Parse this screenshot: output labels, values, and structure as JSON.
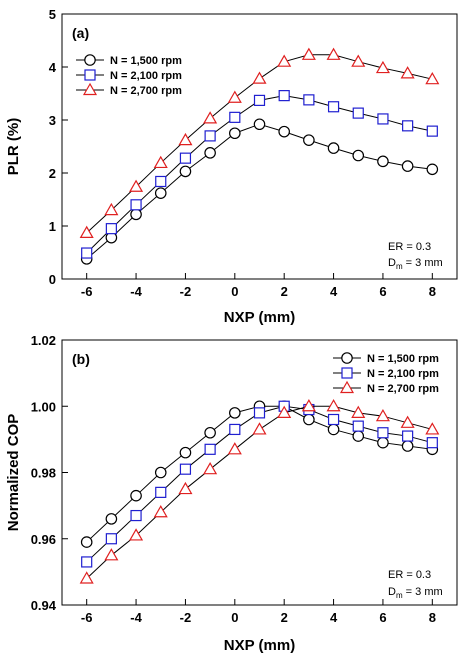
{
  "chart_data": [
    {
      "type": "line",
      "panel_label": "(a)",
      "xlabel": "NXP (mm)",
      "ylabel": "PLR (%)",
      "xlim": [
        -7,
        9
      ],
      "ylim": [
        0,
        5
      ],
      "x_ticks": [
        "-6",
        "-4",
        "-2",
        "0",
        "2",
        "4",
        "6",
        "8"
      ],
      "y_ticks": [
        "0",
        "1",
        "2",
        "3",
        "4",
        "5"
      ],
      "x": [
        -6,
        -5,
        -4,
        -3,
        -2,
        -1,
        0,
        1,
        2,
        3,
        4,
        5,
        6,
        7,
        8
      ],
      "series": [
        {
          "name": "N = 1,500 rpm",
          "marker": "circle",
          "color": "#000000",
          "values": [
            0.38,
            0.78,
            1.22,
            1.62,
            2.03,
            2.38,
            2.75,
            2.92,
            2.78,
            2.62,
            2.47,
            2.33,
            2.22,
            2.13,
            2.07
          ]
        },
        {
          "name": "N = 2,100 rpm",
          "marker": "square",
          "color": "#1f1fd0",
          "values": [
            0.49,
            0.95,
            1.4,
            1.84,
            2.28,
            2.7,
            3.05,
            3.37,
            3.46,
            3.38,
            3.25,
            3.13,
            3.02,
            2.89,
            2.79
          ]
        },
        {
          "name": "N = 2,700 rpm",
          "marker": "triangle",
          "color": "#e02020",
          "values": [
            0.87,
            1.3,
            1.74,
            2.19,
            2.62,
            3.03,
            3.42,
            3.78,
            4.1,
            4.23,
            4.23,
            4.1,
            3.98,
            3.88,
            3.77
          ]
        }
      ],
      "legend_position": "top-left",
      "annotation": [
        "ER = 0.3",
        "D",
        "m",
        " = 3 mm"
      ],
      "grid": false
    },
    {
      "type": "line",
      "panel_label": "(b)",
      "xlabel": "NXP (mm)",
      "ylabel": "Normalized COP",
      "xlim": [
        -7,
        9
      ],
      "ylim": [
        0.94,
        1.02
      ],
      "x_ticks": [
        "-6",
        "-4",
        "-2",
        "0",
        "2",
        "4",
        "6",
        "8"
      ],
      "y_ticks": [
        "0.94",
        "0.96",
        "0.98",
        "1.00",
        "1.02"
      ],
      "x": [
        -6,
        -5,
        -4,
        -3,
        -2,
        -1,
        0,
        1,
        2,
        3,
        4,
        5,
        6,
        7,
        8
      ],
      "series": [
        {
          "name": "N = 1,500 rpm",
          "marker": "circle",
          "color": "#000000",
          "values": [
            0.959,
            0.966,
            0.973,
            0.98,
            0.986,
            0.992,
            0.998,
            1.0,
            1.0,
            0.996,
            0.993,
            0.991,
            0.989,
            0.988,
            0.987
          ]
        },
        {
          "name": "N = 2,100 rpm",
          "marker": "square",
          "color": "#1f1fd0",
          "values": [
            0.953,
            0.96,
            0.967,
            0.974,
            0.981,
            0.987,
            0.993,
            0.998,
            1.0,
            0.999,
            0.996,
            0.994,
            0.992,
            0.991,
            0.989
          ]
        },
        {
          "name": "N = 2,700 rpm",
          "marker": "triangle",
          "color": "#e02020",
          "values": [
            0.948,
            0.955,
            0.961,
            0.968,
            0.975,
            0.981,
            0.987,
            0.993,
            0.998,
            1.0,
            1.0,
            0.998,
            0.997,
            0.995,
            0.993
          ]
        }
      ],
      "legend_position": "top-right",
      "annotation": [
        "ER = 0.3",
        "D",
        "m",
        " = 3 mm"
      ],
      "grid": false
    }
  ]
}
